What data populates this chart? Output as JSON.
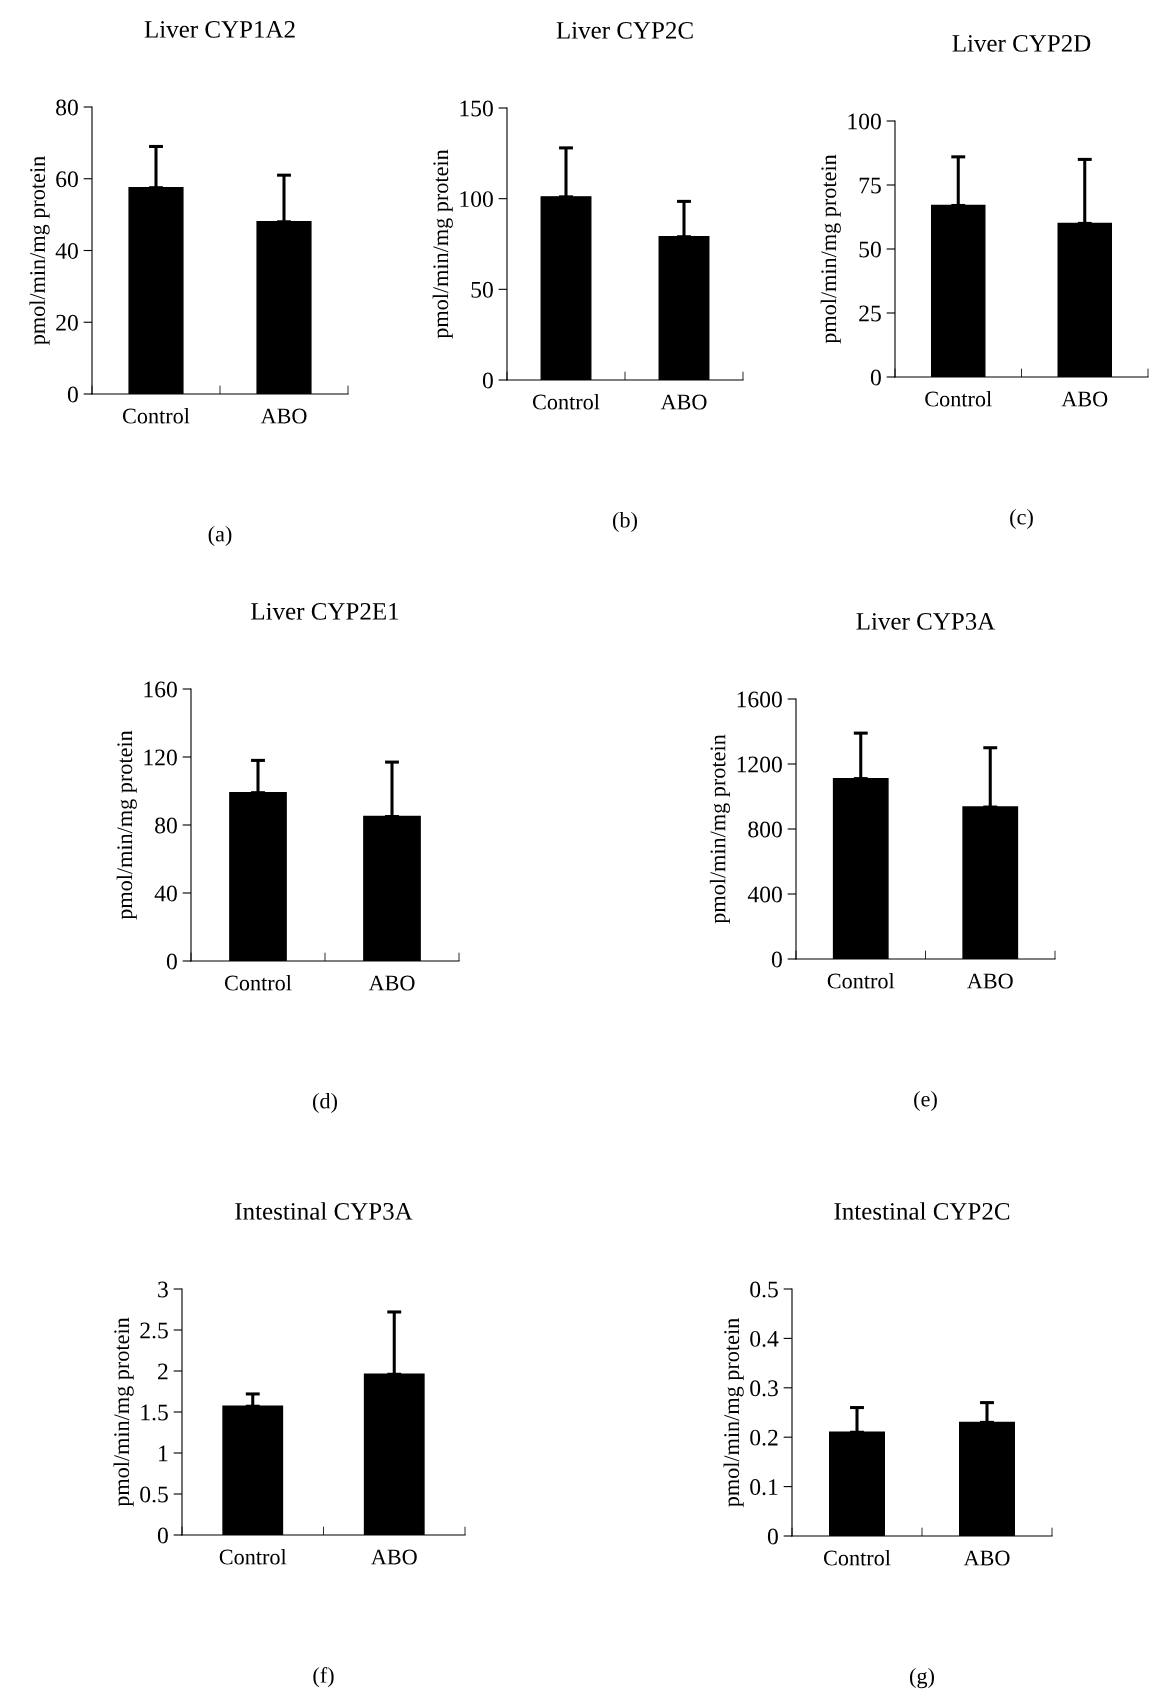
{
  "chart_data": [
    {
      "type": "bar",
      "title": "Liver CYP1A2",
      "ylabel": "pmol/min/mg protein",
      "categories": [
        "Control",
        "ABO"
      ],
      "values": [
        57.5,
        48
      ],
      "errors": [
        [
          57.5,
          69
        ],
        [
          48,
          61
        ]
      ],
      "color": "#000000",
      "ylim": [
        0,
        80
      ],
      "yticks": [
        0,
        20,
        40,
        60,
        80
      ],
      "grid": false,
      "annotations": [
        "(a)"
      ]
    },
    {
      "type": "bar",
      "title": "Liver CYP2C",
      "ylabel": "pmol/min/mg protein",
      "categories": [
        "Control",
        "ABO"
      ],
      "values": [
        101,
        79
      ],
      "errors": [
        [
          101,
          128
        ],
        [
          79,
          98.5
        ]
      ],
      "color": "#000000",
      "ylim": [
        0,
        150
      ],
      "yticks": [
        0,
        50,
        100,
        150
      ],
      "grid": false,
      "annotations": [
        "(b)"
      ]
    },
    {
      "type": "bar",
      "title": "Liver CYP2D",
      "ylabel": "pmol/min/mg protein",
      "categories": [
        "Control",
        "ABO"
      ],
      "values": [
        67,
        60
      ],
      "errors": [
        [
          67,
          86
        ],
        [
          60,
          85
        ]
      ],
      "color": "#000000",
      "ylim": [
        0,
        100
      ],
      "yticks": [
        0,
        25,
        50,
        75,
        100
      ],
      "grid": false,
      "annotations": [
        "(c)"
      ]
    },
    {
      "type": "bar",
      "title": "Liver CYP2E1",
      "ylabel": "pmol/min/mg protein",
      "categories": [
        "Control",
        "ABO"
      ],
      "values": [
        99,
        85
      ],
      "errors": [
        [
          99,
          118
        ],
        [
          85,
          117
        ]
      ],
      "color": "#000000",
      "ylim": [
        0,
        160
      ],
      "yticks": [
        0,
        40,
        80,
        120,
        160
      ],
      "grid": false,
      "annotations": [
        "(d)"
      ]
    },
    {
      "type": "bar",
      "title": "Liver CYP3A",
      "ylabel": "pmol/min/mg protein",
      "categories": [
        "Control",
        "ABO"
      ],
      "values": [
        1110,
        935
      ],
      "errors": [
        [
          1110,
          1390
        ],
        [
          935,
          1300
        ]
      ],
      "color": "#000000",
      "ylim": [
        0,
        1600
      ],
      "yticks": [
        0,
        400,
        800,
        1200,
        1600
      ],
      "grid": false,
      "annotations": [
        "(e)"
      ]
    },
    {
      "type": "bar",
      "title": "Intestinal CYP3A",
      "ylabel": "pmol/min/mg protein",
      "categories": [
        "Control",
        "ABO"
      ],
      "values": [
        1.57,
        1.96
      ],
      "errors": [
        [
          1.57,
          1.72
        ],
        [
          1.96,
          2.72
        ]
      ],
      "color": "#000000",
      "ylim": [
        0,
        3
      ],
      "yticks": [
        0,
        0.5,
        1,
        1.5,
        2,
        2.5,
        3
      ],
      "grid": false,
      "annotations": [
        "(f)"
      ]
    },
    {
      "type": "bar",
      "title": "Intestinal CYP2C",
      "ylabel": "pmol/min/mg protein",
      "categories": [
        "Control",
        "ABO"
      ],
      "values": [
        0.21,
        0.23
      ],
      "errors": [
        [
          0.21,
          0.26
        ],
        [
          0.23,
          0.27
        ]
      ],
      "color": "#000000",
      "ylim": [
        0,
        0.5
      ],
      "yticks": [
        0,
        0.1,
        0.2,
        0.3,
        0.4,
        0.5
      ],
      "grid": false,
      "annotations": [
        "(g)"
      ]
    }
  ]
}
